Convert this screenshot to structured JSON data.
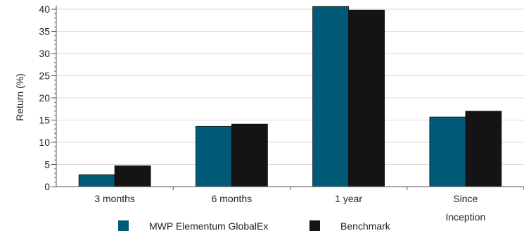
{
  "chart_data": {
    "type": "bar",
    "categories": [
      [
        "3 months"
      ],
      [
        "6 months"
      ],
      [
        "1 year"
      ],
      [
        "Since",
        "Inception"
      ]
    ],
    "series": [
      {
        "name": "MWP Elementum GlobalEx",
        "color": "#005a78",
        "values": [
          2.7,
          13.6,
          40.6,
          15.7
        ]
      },
      {
        "name": "Benchmark",
        "color": "#141414",
        "values": [
          4.7,
          14.1,
          39.8,
          17.0
        ]
      }
    ],
    "title": "",
    "xlabel": "",
    "ylabel": "Return (%)",
    "ylim": [
      0,
      40
    ],
    "yticks": [
      0,
      5,
      10,
      15,
      20,
      25,
      30,
      35,
      40
    ],
    "grid": true,
    "legend_position": "bottom"
  }
}
